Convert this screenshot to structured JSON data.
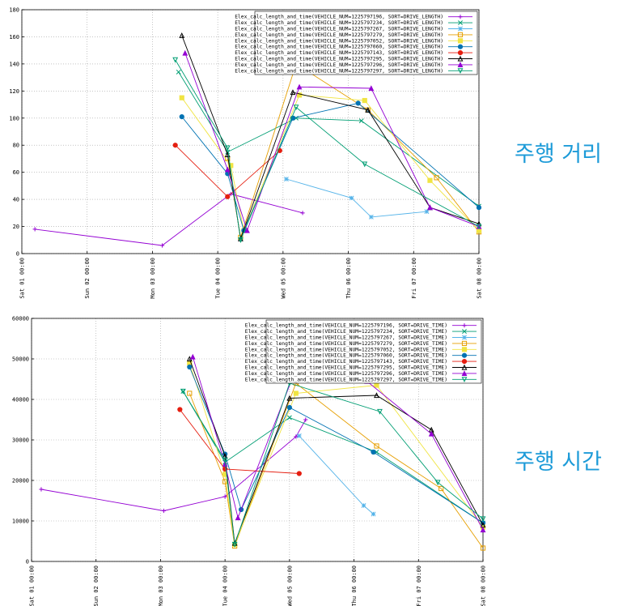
{
  "side_labels": {
    "distance": "주행 거리",
    "time": "주행 시간"
  },
  "chart_data": [
    {
      "type": "line",
      "ylim": [
        0,
        180
      ],
      "yticks": [
        0,
        20,
        40,
        60,
        80,
        100,
        120,
        140,
        160,
        180
      ],
      "xlim": [
        0,
        7
      ],
      "xticks": [
        0,
        1,
        2,
        3,
        4,
        5,
        6,
        7
      ],
      "xtick_labels": [
        "Sat 01 00:00",
        "Sun 02 00:00",
        "Mon 03 00:00",
        "Tue 04 00:00",
        "Wed 05 00:00",
        "Thu 06 00:00",
        "Fri 07 00:00",
        "Sat 08 00:00"
      ],
      "grid": true,
      "legend_position": "top-right",
      "series": [
        {
          "name": "Elex_calc_length_and_time(VEHICLE_NUM=1225797196, SORT=DRIVE_LENGTH)",
          "color": "#9400d3",
          "marker": "plus",
          "x": [
            0.2,
            2.15,
            3.2,
            4.3
          ],
          "y": [
            18,
            6,
            44,
            30
          ]
        },
        {
          "name": "Elex_calc_length_and_time(VEHICLE_NUM=1225797234, SORT=DRIVE_LENGTH)",
          "color": "#009e73",
          "marker": "x",
          "x": [
            2.4,
            3.15,
            4.2,
            5.2,
            7.0
          ],
          "y": [
            134,
            75,
            100,
            98,
            35
          ]
        },
        {
          "name": "Elex_calc_length_and_time(VEHICLE_NUM=1225797267, SORT=DRIVE_LENGTH)",
          "color": "#56b4e9",
          "marker": "star",
          "x": [
            4.05,
            5.05,
            5.35,
            6.2
          ],
          "y": [
            55,
            41,
            27,
            31
          ]
        },
        {
          "name": "Elex_calc_length_and_time(VEHICLE_NUM=1225797279, SORT=DRIVE_LENGTH)",
          "color": "#e69f00",
          "marker": "square",
          "x": [
            3.15,
            3.35,
            4.2,
            5.3,
            6.35,
            7.0
          ],
          "y": [
            70,
            12,
            140,
            106,
            56,
            16
          ]
        },
        {
          "name": "Elex_calc_length_and_time(VEHICLE_NUM=1225797052, SORT=DRIVE_LENGTH)",
          "color": "#f0e442",
          "marker": "filled-square",
          "x": [
            2.45,
            3.2,
            3.4,
            4.25,
            5.25,
            6.25,
            7.0
          ],
          "y": [
            115,
            65,
            17,
            117,
            113,
            54,
            17
          ]
        },
        {
          "name": "Elex_calc_length_and_time(VEHICLE_NUM=1225797060, SORT=DRIVE_LENGTH)",
          "color": "#0072b2",
          "marker": "filled-circle",
          "x": [
            2.45,
            3.15,
            3.4,
            4.15,
            5.15,
            7.0
          ],
          "y": [
            101,
            59,
            17,
            100,
            111,
            34
          ]
        },
        {
          "name": "Elex_calc_length_and_time(VEHICLE_NUM=1225797143, SORT=DRIVE_LENGTH)",
          "color": "#e51e10",
          "marker": "filled-circle",
          "x": [
            2.35,
            3.15,
            3.95
          ],
          "y": [
            80,
            42,
            76
          ]
        },
        {
          "name": "Elex_calc_length_and_time(VEHICLE_NUM=1225797295, SORT=DRIVE_LENGTH)",
          "color": "#000000",
          "marker": "triangle",
          "x": [
            2.45,
            3.15,
            3.35,
            4.15,
            5.3,
            6.25,
            7.0
          ],
          "y": [
            161,
            73,
            11,
            119,
            106,
            34,
            22
          ]
        },
        {
          "name": "Elex_calc_length_and_time(VEHICLE_NUM=1225797296, SORT=DRIVE_LENGTH)",
          "color": "#9400d3",
          "marker": "filled-triangle",
          "x": [
            2.5,
            3.15,
            3.45,
            4.25,
            5.35,
            6.25,
            7.0
          ],
          "y": [
            148,
            62,
            17,
            123,
            122,
            34,
            20
          ]
        },
        {
          "name": "Elex_calc_length_and_time(VEHICLE_NUM=1225797297, SORT=DRIVE_LENGTH)",
          "color": "#009e73",
          "marker": "triangle-down",
          "x": [
            2.35,
            3.15,
            3.35,
            4.2,
            5.25,
            7.0
          ],
          "y": [
            143,
            78,
            10,
            108,
            66,
            20
          ]
        }
      ]
    },
    {
      "type": "line",
      "ylim": [
        0,
        60000
      ],
      "yticks": [
        0,
        10000,
        20000,
        30000,
        40000,
        50000,
        60000
      ],
      "xlim": [
        0,
        7
      ],
      "xticks": [
        0,
        1,
        2,
        3,
        4,
        5,
        6,
        7
      ],
      "xtick_labels": [
        "Sat 01 00:00",
        "Sun 02 00:00",
        "Mon 03 00:00",
        "Tue 04 00:00",
        "Wed 05 00:00",
        "Thu 06 00:00",
        "Fri 07 00:00",
        "Sat 08 00:00"
      ],
      "grid": true,
      "legend_position": "top-right",
      "series": [
        {
          "name": "Elex_calc_length_and_time(VEHICLE_NUM=1225797196, SORT=DRIVE_TIME)",
          "color": "#9400d3",
          "marker": "plus",
          "x": [
            0.15,
            2.05,
            3.0,
            4.1,
            4.25
          ],
          "y": [
            17800,
            12500,
            16000,
            30800,
            35000
          ]
        },
        {
          "name": "Elex_calc_length_and_time(VEHICLE_NUM=1225797234, SORT=DRIVE_TIME)",
          "color": "#009e73",
          "marker": "x",
          "x": [
            2.35,
            3.0,
            4.0,
            5.35,
            7.0
          ],
          "y": [
            42000,
            24500,
            35500,
            27000,
            9500
          ]
        },
        {
          "name": "Elex_calc_length_and_time(VEHICLE_NUM=1225797267, SORT=DRIVE_TIME)",
          "color": "#56b4e9",
          "marker": "star",
          "x": [
            4.15,
            5.15,
            5.3
          ],
          "y": [
            31000,
            13800,
            11700
          ]
        },
        {
          "name": "Elex_calc_length_and_time(VEHICLE_NUM=1225797279, SORT=DRIVE_TIME)",
          "color": "#e69f00",
          "marker": "square",
          "x": [
            2.45,
            3.0,
            3.15,
            4.1,
            5.35,
            6.35,
            7.0
          ],
          "y": [
            41500,
            19700,
            3800,
            44000,
            28500,
            18000,
            3300
          ]
        },
        {
          "name": "Elex_calc_length_and_time(VEHICLE_NUM=1225797052, SORT=DRIVE_TIME)",
          "color": "#f0e442",
          "marker": "filled-square",
          "x": [
            2.45,
            3.0,
            3.15,
            4.1,
            5.35,
            7.0
          ],
          "y": [
            49000,
            21500,
            4200,
            41500,
            43500,
            8500
          ]
        },
        {
          "name": "Elex_calc_length_and_time(VEHICLE_NUM=1225797060, SORT=DRIVE_TIME)",
          "color": "#0072b2",
          "marker": "filled-circle",
          "x": [
            2.45,
            3.0,
            3.25,
            4.0,
            5.3,
            7.0
          ],
          "y": [
            48000,
            26500,
            12800,
            38000,
            27000,
            9500
          ]
        },
        {
          "name": "Elex_calc_length_and_time(VEHICLE_NUM=1225797143, SORT=DRIVE_TIME)",
          "color": "#e51e10",
          "marker": "filled-circle",
          "x": [
            2.3,
            3.0,
            4.15
          ],
          "y": [
            37500,
            22800,
            21700
          ]
        },
        {
          "name": "Elex_calc_length_and_time(VEHICLE_NUM=1225797295, SORT=DRIVE_TIME)",
          "color": "#000000",
          "marker": "triangle",
          "x": [
            2.45,
            3.0,
            3.15,
            4.0,
            5.35,
            6.2,
            7.0
          ],
          "y": [
            50000,
            26000,
            4500,
            40300,
            41000,
            32500,
            9000
          ]
        },
        {
          "name": "Elex_calc_length_and_time(VEHICLE_NUM=1225797296, SORT=DRIVE_TIME)",
          "color": "#9400d3",
          "marker": "filled-triangle",
          "x": [
            2.5,
            3.0,
            3.2,
            4.1,
            5.2,
            6.2,
            7.0
          ],
          "y": [
            50500,
            24000,
            10800,
            47500,
            44500,
            31500,
            7800
          ]
        },
        {
          "name": "Elex_calc_length_and_time(VEHICLE_NUM=1225797297, SORT=DRIVE_TIME)",
          "color": "#009e73",
          "marker": "triangle-down",
          "x": [
            2.35,
            3.0,
            3.15,
            4.0,
            5.4,
            6.3,
            7.0
          ],
          "y": [
            42000,
            25000,
            4200,
            44000,
            37000,
            19500,
            10500
          ]
        }
      ]
    }
  ]
}
